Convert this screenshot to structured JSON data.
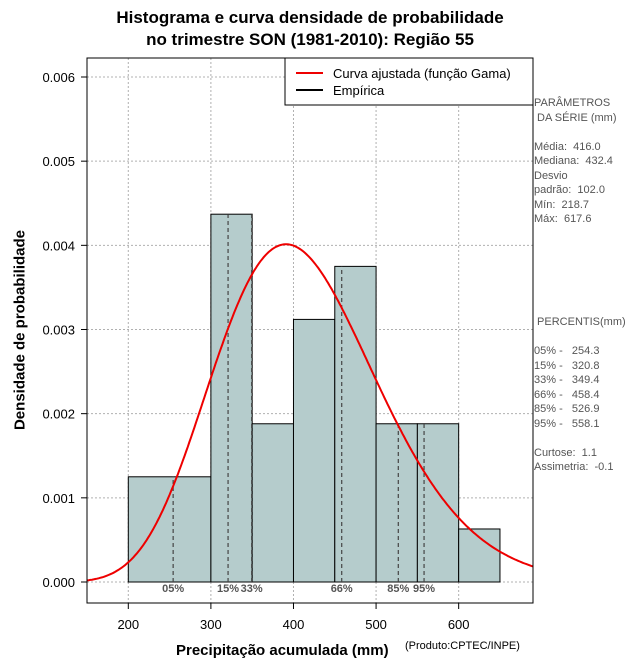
{
  "chart_data": {
    "type": "histogram",
    "title_line1": "Histograma e curva densidade de probabilidade",
    "title_line2": "no trimestre SON (1981-2010): Região 55",
    "xlabel": "Precipitação acumulada (mm)",
    "ylabel": "Densidade de probabilidade",
    "credit": "(Produto:CPTEC/INPE)",
    "xlim": [
      150,
      690
    ],
    "ylim": [
      0,
      0.0062
    ],
    "x_ticks": [
      "200",
      "300",
      "400",
      "500",
      "600"
    ],
    "y_ticks": [
      "0.000",
      "0.001",
      "0.002",
      "0.003",
      "0.004",
      "0.005",
      "0.006"
    ],
    "grid": true,
    "bins": [
      {
        "start": 200,
        "end": 300,
        "density": 0.00125
      },
      {
        "start": 300,
        "end": 350,
        "density": 0.00437
      },
      {
        "start": 350,
        "end": 400,
        "density": 0.00188
      },
      {
        "start": 400,
        "end": 450,
        "density": 0.00312
      },
      {
        "start": 450,
        "end": 500,
        "density": 0.00375
      },
      {
        "start": 500,
        "end": 550,
        "density": 0.00188
      },
      {
        "start": 550,
        "end": 600,
        "density": 0.00188
      },
      {
        "start": 600,
        "end": 650,
        "density": 0.00063
      }
    ],
    "gamma_fit": {
      "mean": 416.0,
      "sd": 102.0
    },
    "percentile_lines": [
      {
        "label": "05%",
        "value": 254.3
      },
      {
        "label": "15%",
        "value": 320.8
      },
      {
        "label": "33%",
        "value": 349.4
      },
      {
        "label": "66%",
        "value": 458.4
      },
      {
        "label": "85%",
        "value": 526.9
      },
      {
        "label": "95%",
        "value": 558.1
      }
    ],
    "legend": {
      "position": "top-right",
      "items": [
        {
          "label": "Curva ajustada (função Gama)",
          "color": "#ee0000"
        },
        {
          "label": "Empírica",
          "color": "#000000"
        }
      ]
    },
    "colors": {
      "bar_fill": "#b5cccc",
      "curve": "#ee0000",
      "grid": "#b0b0b0"
    }
  },
  "stats": {
    "params_title1": "PARÂMETROS",
    "params_title2": " DA SÉRIE (mm)",
    "media": "Média:  416.0",
    "mediana": "Mediana:  432.4",
    "desvio1": "Desvio",
    "desvio2": "padrão:  102.0",
    "min": "Mín:  218.7",
    "max": "Máx:  617.6",
    "percentis_title": " PERCENTIS(mm)",
    "p05": "05% -   254.3",
    "p15": "15% -   320.8",
    "p33": "33% -   349.4",
    "p66": "66% -   458.4",
    "p85": "85% -   526.9",
    "p95": "95% -   558.1",
    "curtose": "Curtose:  1.1",
    "assimetria": "Assimetria:  -0.1"
  }
}
